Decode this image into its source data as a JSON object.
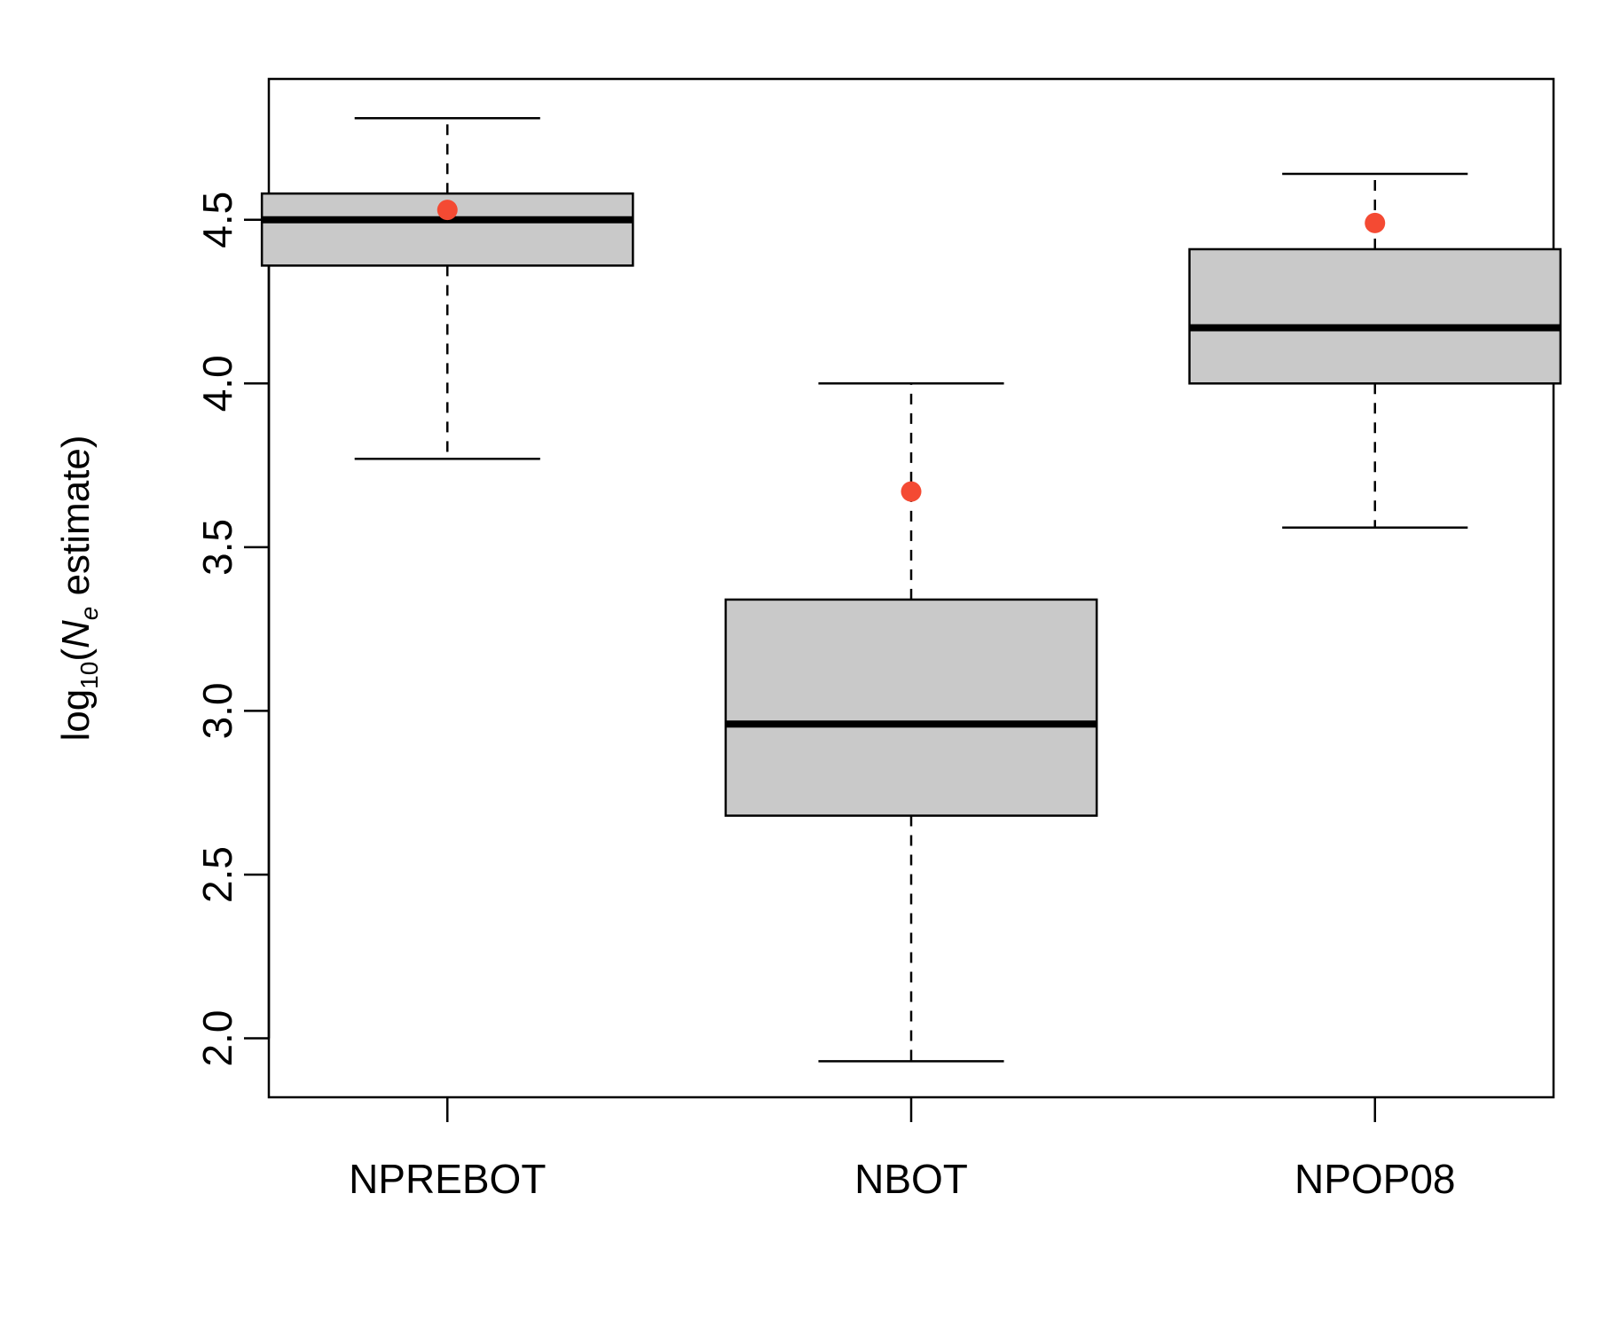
{
  "chart_data": {
    "type": "box",
    "categories": [
      "NPREBOT",
      "NBOT",
      "NPOP08"
    ],
    "ylabel": {
      "prefix": "log",
      "subscript": "10",
      "open": "(",
      "variable": "N",
      "variable_sub": "e",
      "suffix": " estimate)"
    },
    "ylim": [
      1.82,
      4.93
    ],
    "yticks": [
      2.0,
      2.5,
      3.0,
      3.5,
      4.0,
      4.5
    ],
    "ytick_labels": [
      "2.0",
      "2.5",
      "3.0",
      "3.5",
      "4.0",
      "4.5"
    ],
    "series": [
      {
        "category": "NPREBOT",
        "whisker_low": 3.77,
        "q1": 4.36,
        "median": 4.5,
        "q3": 4.58,
        "whisker_high": 4.81,
        "point": 4.53
      },
      {
        "category": "NBOT",
        "whisker_low": 1.93,
        "q1": 2.68,
        "median": 2.96,
        "q3": 3.34,
        "whisker_high": 4.0,
        "point": 3.67
      },
      {
        "category": "NPOP08",
        "whisker_low": 3.56,
        "q1": 4.0,
        "median": 4.17,
        "q3": 4.41,
        "whisker_high": 4.64,
        "point": 4.49
      }
    ],
    "colors": {
      "box_fill": "#c9c9c9",
      "point": "#f44a33",
      "line": "#000000"
    },
    "grid": false,
    "legend": "none"
  }
}
